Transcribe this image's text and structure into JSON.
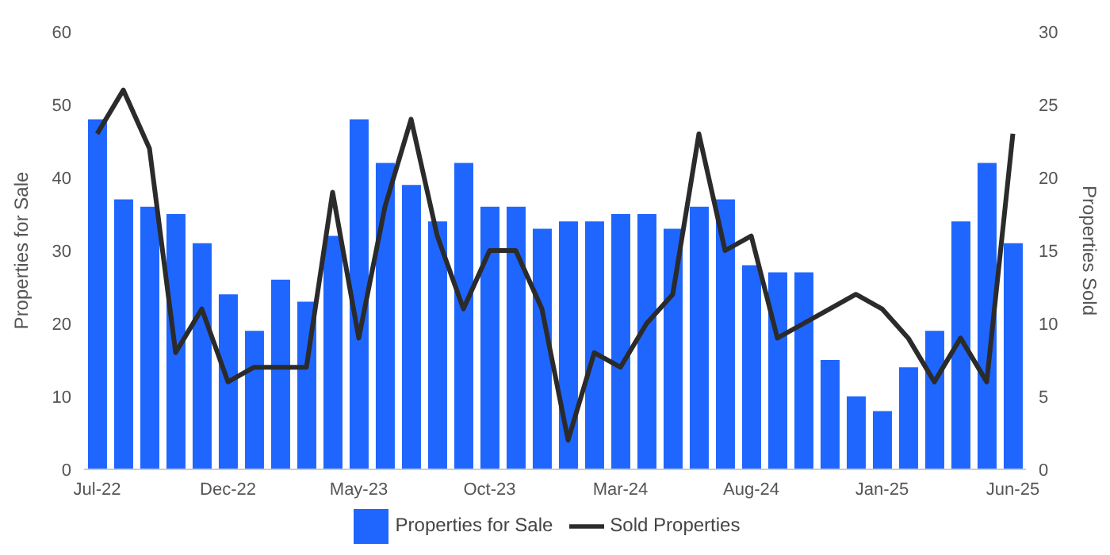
{
  "chart_data": {
    "type": "bar",
    "ylabel": "Properties for Sale",
    "y2label": "Properties Sold",
    "categories": [
      "Jul-22",
      null,
      null,
      null,
      null,
      "Dec-22",
      null,
      null,
      null,
      null,
      "May-23",
      null,
      null,
      null,
      null,
      "Oct-23",
      null,
      null,
      null,
      null,
      "Mar-24",
      null,
      null,
      null,
      null,
      "Aug-24",
      null,
      null,
      null,
      null,
      "Jan-25",
      null,
      null,
      null,
      null,
      "Jun-25"
    ],
    "series": [
      {
        "name": "Properties for Sale",
        "color": "#1f66ff",
        "values": [
          48,
          37,
          36,
          35,
          31,
          24,
          19,
          26,
          23,
          32,
          48,
          42,
          39,
          34,
          42,
          36,
          36,
          33,
          34,
          34,
          35,
          35,
          33,
          36,
          37,
          28,
          27,
          27,
          15,
          10,
          8,
          14,
          19,
          34,
          42,
          31
        ]
      },
      {
        "name": "Sold Properties",
        "type": "line",
        "axis": "y2",
        "color": "#2b2b2b",
        "values": [
          23,
          26,
          22,
          8,
          11,
          6,
          7,
          7,
          7,
          19,
          9,
          18,
          24,
          16,
          11,
          15,
          15,
          11,
          2,
          8,
          7,
          10,
          12,
          23,
          15,
          16,
          9,
          10,
          11,
          12,
          11,
          9,
          6,
          9,
          6,
          23
        ]
      }
    ],
    "ylim": [
      0,
      60
    ],
    "yticks": [
      0,
      10,
      20,
      30,
      40,
      50,
      60
    ],
    "y2lim": [
      0,
      30
    ],
    "y2ticks": [
      0,
      5,
      10,
      15,
      20,
      25,
      30
    ],
    "grid": false,
    "legend": "bottom",
    "marker": "none",
    "line_style": "solid"
  }
}
